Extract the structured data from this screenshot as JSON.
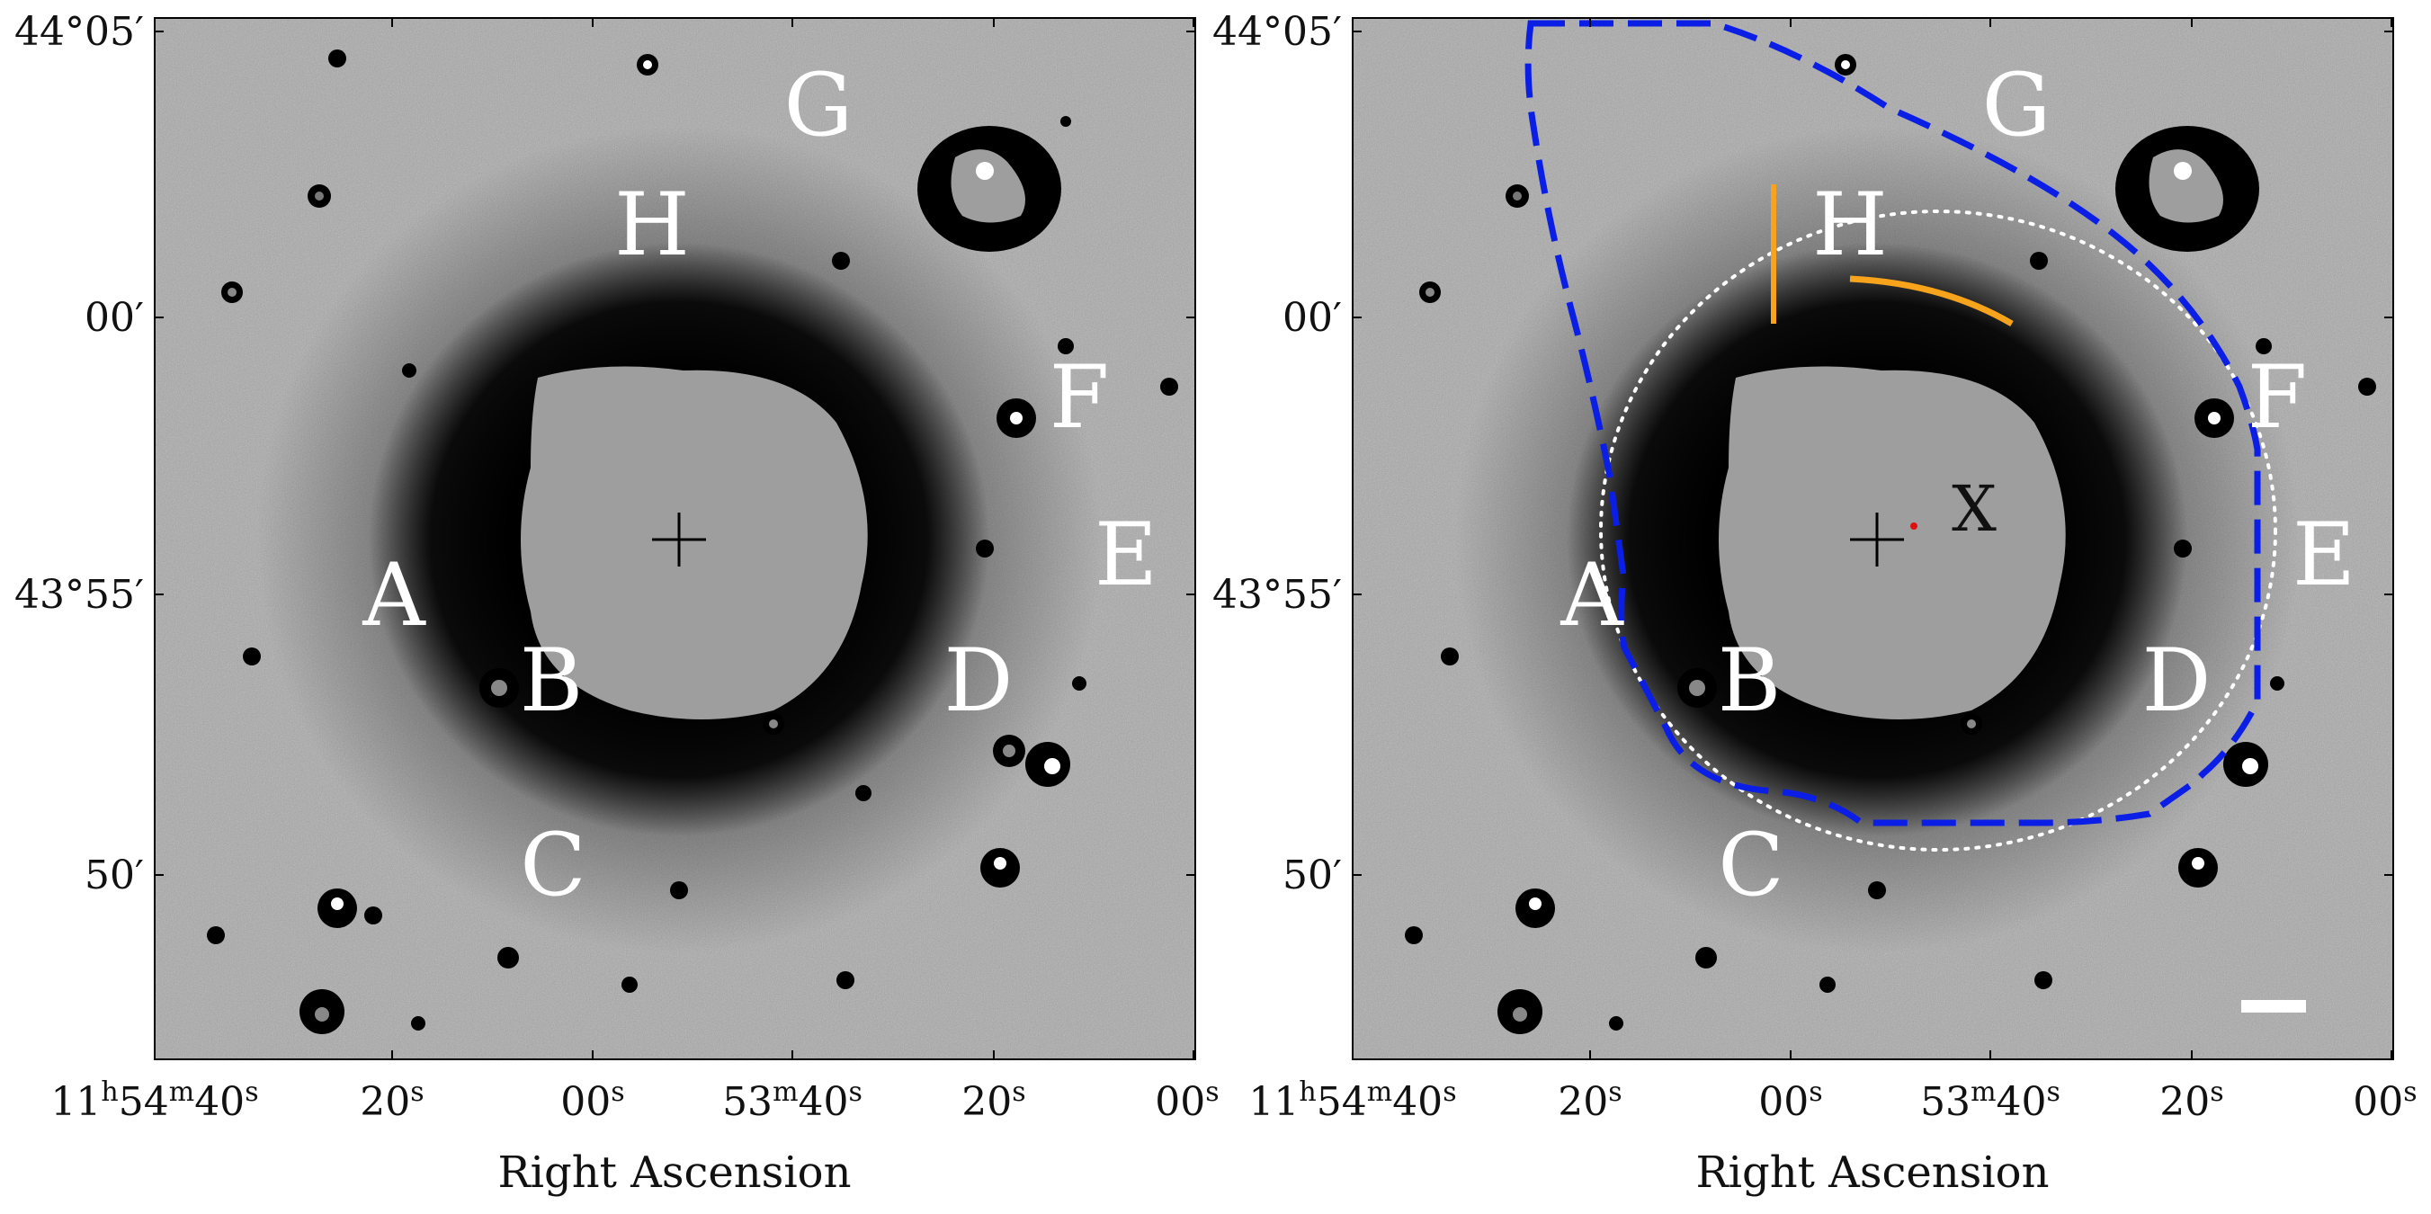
{
  "panels": [
    {
      "id": "left",
      "xlabel": "Right Ascension",
      "ra_ticks": [
        {
          "main": "11",
          "sup1": "h",
          "mid": "54",
          "sup2": "m",
          "last": "40",
          "sup3": "s"
        },
        {
          "main": "20",
          "sup": "s"
        },
        {
          "main": "00",
          "sup": "s"
        },
        {
          "main": "53",
          "sup1": "m",
          "last": "40",
          "sup2": "s"
        },
        {
          "main": "20",
          "sup": "s"
        },
        {
          "main": "00",
          "sup": "s"
        }
      ],
      "dec_ticks": [
        "44°05′",
        "00′",
        "43°55′",
        "50′"
      ],
      "region_labels": [
        "G",
        "H",
        "F",
        "E",
        "A",
        "B",
        "D",
        "C"
      ]
    },
    {
      "id": "right",
      "xlabel": "Right Ascension",
      "ra_ticks": [
        {
          "main": "11",
          "sup1": "h",
          "mid": "54",
          "sup2": "m",
          "last": "40",
          "sup3": "s"
        },
        {
          "main": "20",
          "sup": "s"
        },
        {
          "main": "00",
          "sup": "s"
        },
        {
          "main": "53",
          "sup1": "m",
          "last": "40",
          "sup2": "s"
        },
        {
          "main": "20",
          "sup": "s"
        },
        {
          "main": "00",
          "sup": "s"
        }
      ],
      "dec_ticks": [
        "44°05′",
        "00′",
        "43°55′",
        "50′"
      ],
      "region_labels": [
        "G",
        "H",
        "F",
        "E",
        "A",
        "B",
        "D",
        "C"
      ],
      "marker_label": "X"
    }
  ],
  "colors": {
    "sky": "#a9a9a9",
    "halo": "#050505",
    "masked_core": "#9e9e9e",
    "boundary": "#0a1ee6",
    "arc": "#f7a31c",
    "dotted_circle": "#ffffff",
    "center_dot": "#e01010"
  }
}
